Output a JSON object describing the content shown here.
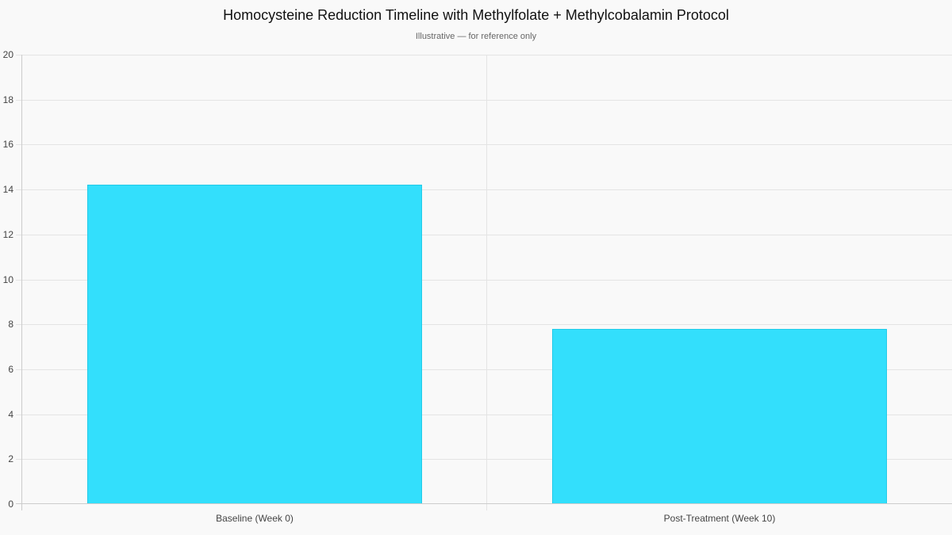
{
  "chart_data": {
    "type": "bar",
    "title": "Homocysteine Reduction Timeline with Methylfolate + Methylcobalamin Protocol",
    "subtitle": "Illustrative — for reference only",
    "categories": [
      "Baseline (Week 0)",
      "Post-Treatment (Week 10)"
    ],
    "values": [
      14.2,
      7.8
    ],
    "xlabel": "",
    "ylabel": "",
    "ylim": [
      0,
      20
    ],
    "yticks": [
      0,
      2,
      4,
      6,
      8,
      10,
      12,
      14,
      16,
      18,
      20
    ],
    "grid": true,
    "legend": "none",
    "bar_color": "#33dffc"
  }
}
